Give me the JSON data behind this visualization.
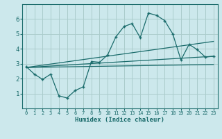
{
  "xlabel": "Humidex (Indice chaleur)",
  "bg_color": "#cce8ec",
  "grid_color": "#aacccc",
  "line_color": "#1a6b6b",
  "xlim": [
    -0.5,
    23.5
  ],
  "ylim": [
    0,
    7
  ],
  "xticks": [
    0,
    1,
    2,
    3,
    4,
    5,
    6,
    7,
    8,
    9,
    10,
    11,
    12,
    13,
    14,
    15,
    16,
    17,
    18,
    19,
    20,
    21,
    22,
    23
  ],
  "yticks": [
    1,
    2,
    3,
    4,
    5,
    6
  ],
  "curve1_x": [
    0,
    1,
    2,
    3,
    4,
    5,
    6,
    7,
    8,
    9,
    10,
    11,
    12,
    13,
    14,
    15,
    16,
    17,
    18,
    19,
    20,
    21,
    22,
    23
  ],
  "curve1_y": [
    2.8,
    2.3,
    1.95,
    2.3,
    0.85,
    0.7,
    1.2,
    1.45,
    3.15,
    3.1,
    3.6,
    4.8,
    5.5,
    5.7,
    4.75,
    6.4,
    6.25,
    5.9,
    5.0,
    3.25,
    4.3,
    3.95,
    3.45,
    3.5
  ],
  "line2_x": [
    0,
    23
  ],
  "line2_y": [
    2.75,
    3.5
  ],
  "line3_x": [
    0,
    23
  ],
  "line3_y": [
    2.75,
    4.5
  ],
  "line4_x": [
    0,
    23
  ],
  "line4_y": [
    2.75,
    2.95
  ]
}
